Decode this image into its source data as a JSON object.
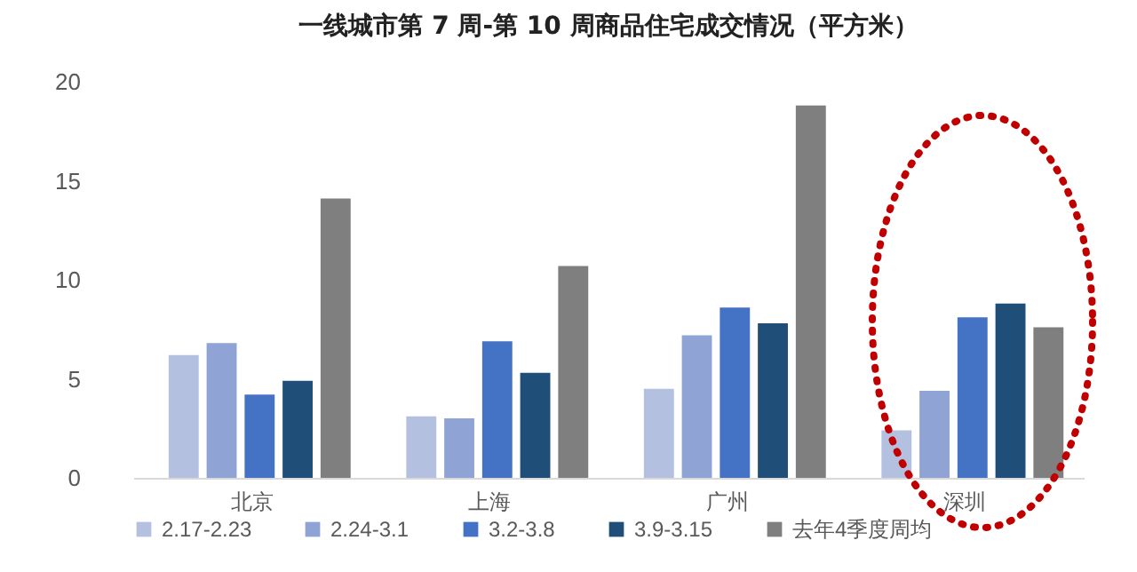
{
  "chart_data": {
    "type": "bar",
    "title": "一线城市第 7 周-第 10 周商品住宅成交情况（平方米）",
    "categories": [
      "北京",
      "上海",
      "广州",
      "深圳"
    ],
    "series": [
      {
        "name": "2.17-2.23",
        "color": "#b4c0e0",
        "values": [
          6.2,
          3.1,
          4.5,
          2.4
        ]
      },
      {
        "name": "2.24-3.1",
        "color": "#8fa3d4",
        "values": [
          6.8,
          3.0,
          7.2,
          4.4
        ]
      },
      {
        "name": "3.2-3.8",
        "color": "#4472c4",
        "values": [
          4.2,
          6.9,
          8.6,
          8.1
        ]
      },
      {
        "name": "3.9-3.15",
        "color": "#1f4e79",
        "values": [
          4.9,
          5.3,
          7.8,
          8.8
        ]
      },
      {
        "name": "去年4季度周均",
        "color": "#7f7f7f",
        "values": [
          14.1,
          10.7,
          18.8,
          7.6
        ]
      }
    ],
    "ylim": [
      0,
      20
    ],
    "yticks": [
      0,
      5,
      10,
      15,
      20
    ],
    "grid": false,
    "legend": "bottom"
  }
}
